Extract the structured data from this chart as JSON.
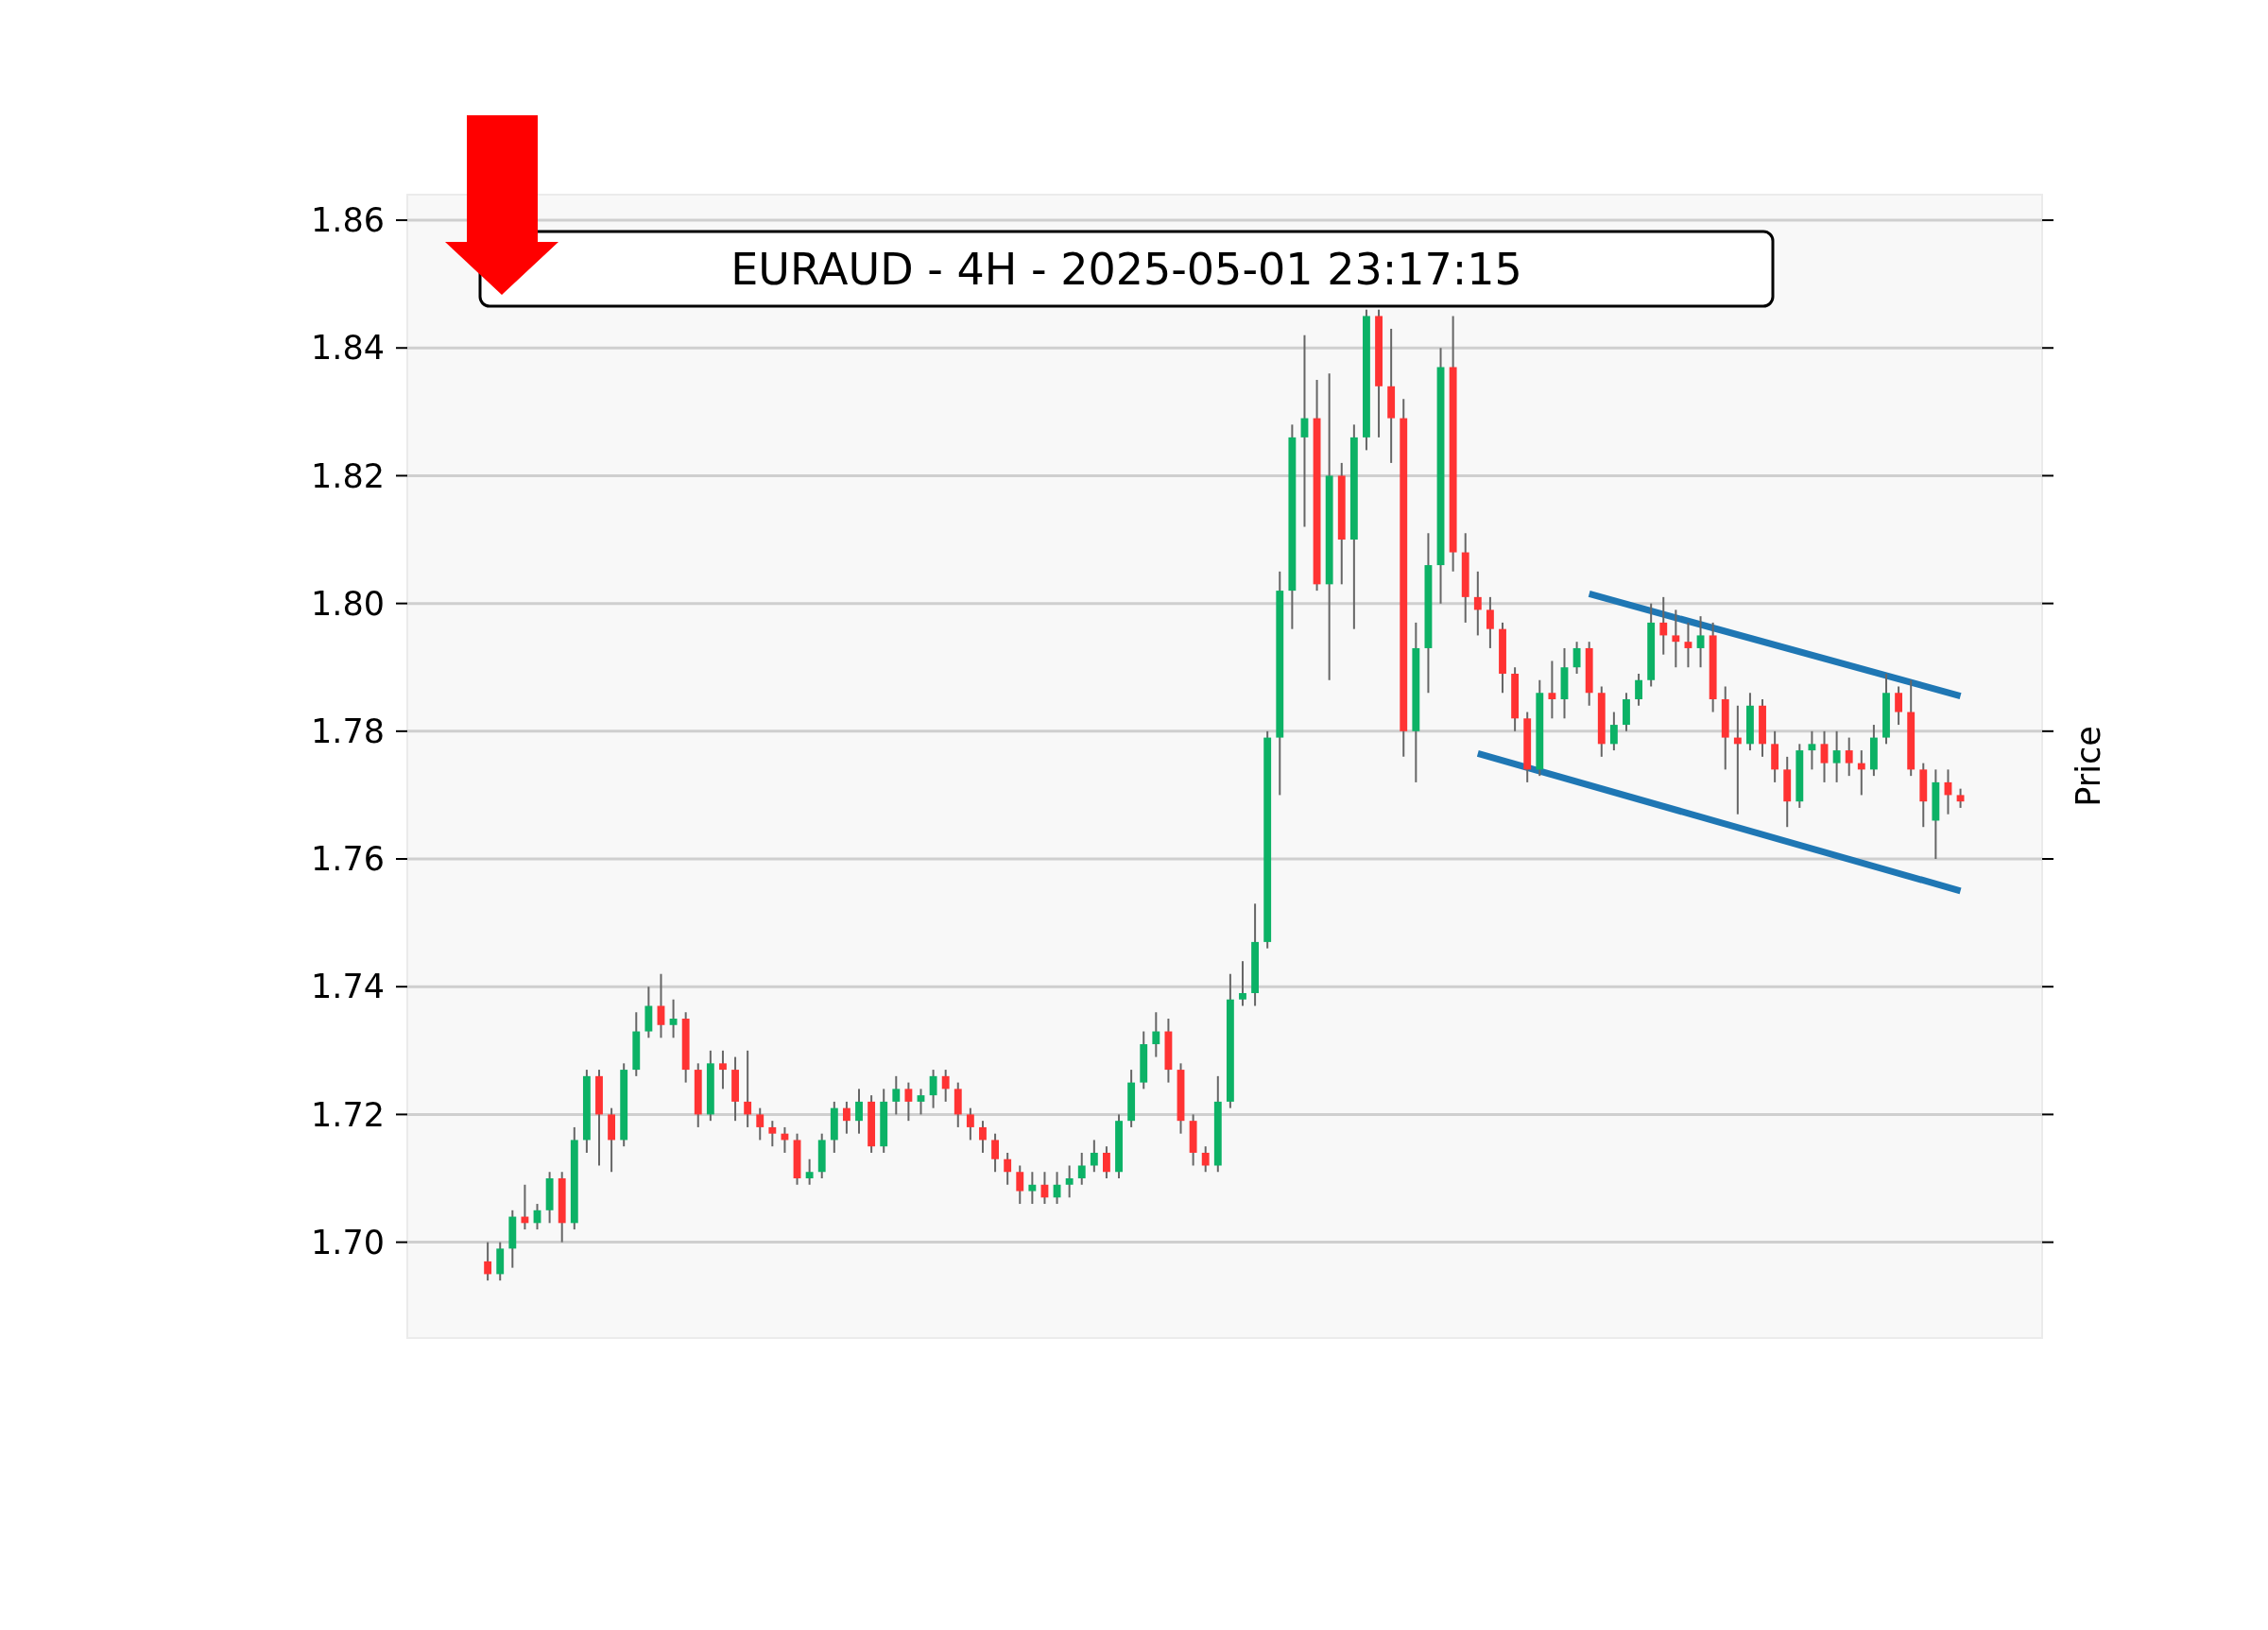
{
  "chart_data": {
    "type": "candlestick",
    "title": "EURAUD - 4H - 2025-05-01 23:17:15",
    "ylabel": "Price",
    "ylim": [
      1.685,
      1.864
    ],
    "yticks": [
      {
        "value": 1.7,
        "label": "1.70"
      },
      {
        "value": 1.72,
        "label": "1.72"
      },
      {
        "value": 1.74,
        "label": "1.74"
      },
      {
        "value": 1.76,
        "label": "1.76"
      },
      {
        "value": 1.78,
        "label": "1.78"
      },
      {
        "value": 1.8,
        "label": "1.80"
      },
      {
        "value": 1.82,
        "label": "1.82"
      },
      {
        "value": 1.84,
        "label": "1.84"
      },
      {
        "value": 1.86,
        "label": "1.86"
      }
    ],
    "grid": "y",
    "tick_labels": "y",
    "colors": [
      "#ff3333",
      "#0cb266",
      "#0cb266",
      "#ff3333",
      "#0cb266",
      "#0cb266",
      "#ff3333",
      "#0cb266",
      "#0cb266",
      "#ff3333",
      "#ff3333",
      "#0cb266",
      "#0cb266",
      "#0cb266",
      "#ff3333",
      "#0cb266",
      "#ff3333",
      "#ff3333",
      "#0cb266",
      "#ff3333",
      "#ff3333",
      "#ff3333",
      "#ff3333",
      "#ff3333",
      "#ff3333",
      "#ff3333",
      "#0cb266",
      "#0cb266",
      "#0cb266",
      "#ff3333",
      "#0cb266",
      "#ff3333",
      "#0cb266",
      "#0cb266",
      "#ff3333",
      "#0cb266",
      "#0cb266",
      "#ff3333",
      "#ff3333",
      "#ff3333",
      "#ff3333",
      "#ff3333",
      "#ff3333",
      "#ff3333",
      "#0cb266",
      "#ff3333",
      "#0cb266",
      "#0cb266",
      "#0cb266",
      "#0cb266",
      "#ff3333",
      "#0cb266",
      "#0cb266",
      "#0cb266",
      "#0cb266",
      "#ff3333",
      "#ff3333",
      "#ff3333",
      "#ff3333",
      "#0cb266",
      "#0cb266",
      "#0cb266",
      "#0cb266",
      "#0cb266",
      "#0cb266",
      "#0cb266",
      "#0cb266",
      "#ff3333",
      "#0cb266",
      "#ff3333",
      "#0cb266",
      "#0cb266",
      "#ff3333",
      "#ff3333",
      "#ff3333",
      "#0cb266",
      "#0cb266",
      "#0cb266",
      "#ff3333",
      "#ff3333",
      "#ff3333",
      "#ff3333",
      "#ff3333",
      "#ff3333",
      "#ff3333",
      "#0cb266",
      "#ff3333",
      "#0cb266",
      "#0cb266",
      "#ff3333",
      "#ff3333",
      "#0cb266",
      "#0cb266",
      "#0cb266",
      "#0cb266",
      "#ff3333",
      "#ff3333",
      "#ff3333",
      "#0cb266",
      "#ff3333",
      "#ff3333",
      "#ff3333",
      "#0cb266",
      "#ff3333",
      "#ff3333",
      "#ff3333",
      "#0cb266",
      "#0cb266",
      "#ff3333",
      "#0cb266",
      "#ff3333",
      "#ff3333",
      "#0cb266",
      "#0cb266",
      "#ff3333",
      "#ff3333",
      "#ff3333",
      "#0cb266",
      "#ff3333",
      "#ff3333"
    ],
    "categories": [
      null,
      null,
      null,
      null,
      null,
      null,
      null,
      null,
      null,
      null,
      null,
      null,
      null,
      null,
      null,
      null,
      null,
      null,
      null,
      null,
      null,
      null,
      null,
      null,
      null,
      null,
      null,
      null,
      null,
      null,
      null,
      null,
      null,
      null,
      null,
      null,
      null,
      null,
      null,
      null,
      null,
      null,
      null,
      null,
      null,
      null,
      null,
      null,
      null,
      null,
      null,
      null,
      null,
      null,
      null,
      null,
      null,
      null,
      null,
      null,
      null,
      null,
      null,
      null,
      null,
      null,
      null,
      null,
      null,
      null,
      null,
      null,
      null,
      null,
      null,
      null,
      null,
      null,
      null,
      null,
      null,
      null,
      null,
      null,
      null,
      null,
      null,
      null,
      null,
      null,
      null,
      null,
      null,
      null,
      null,
      null,
      null,
      null,
      null,
      null,
      null,
      null,
      null,
      null,
      null,
      null,
      null,
      null,
      null,
      null,
      null,
      null,
      null,
      null,
      null,
      null,
      null,
      null,
      null,
      null
    ],
    "ohlc": [
      [
        1.697,
        1.7,
        1.694,
        1.695
      ],
      [
        1.695,
        1.7,
        1.694,
        1.699
      ],
      [
        1.699,
        1.705,
        1.696,
        1.704
      ],
      [
        1.704,
        1.709,
        1.702,
        1.703
      ],
      [
        1.703,
        1.706,
        1.702,
        1.705
      ],
      [
        1.705,
        1.711,
        1.703,
        1.71
      ],
      [
        1.71,
        1.711,
        1.7,
        1.703
      ],
      [
        1.703,
        1.718,
        1.702,
        1.716
      ],
      [
        1.716,
        1.727,
        1.714,
        1.726
      ],
      [
        1.726,
        1.727,
        1.712,
        1.72
      ],
      [
        1.72,
        1.721,
        1.711,
        1.716
      ],
      [
        1.716,
        1.728,
        1.715,
        1.727
      ],
      [
        1.727,
        1.736,
        1.726,
        1.733
      ],
      [
        1.733,
        1.74,
        1.732,
        1.737
      ],
      [
        1.737,
        1.742,
        1.732,
        1.734
      ],
      [
        1.734,
        1.738,
        1.732,
        1.735
      ],
      [
        1.735,
        1.736,
        1.725,
        1.727
      ],
      [
        1.727,
        1.728,
        1.718,
        1.72
      ],
      [
        1.72,
        1.73,
        1.719,
        1.728
      ],
      [
        1.728,
        1.73,
        1.724,
        1.727
      ],
      [
        1.727,
        1.729,
        1.719,
        1.722
      ],
      [
        1.722,
        1.73,
        1.718,
        1.72
      ],
      [
        1.72,
        1.721,
        1.716,
        1.718
      ],
      [
        1.718,
        1.719,
        1.715,
        1.717
      ],
      [
        1.717,
        1.718,
        1.714,
        1.716
      ],
      [
        1.716,
        1.717,
        1.709,
        1.71
      ],
      [
        1.71,
        1.713,
        1.709,
        1.711
      ],
      [
        1.711,
        1.717,
        1.71,
        1.716
      ],
      [
        1.716,
        1.722,
        1.714,
        1.721
      ],
      [
        1.721,
        1.722,
        1.717,
        1.719
      ],
      [
        1.719,
        1.724,
        1.717,
        1.722
      ],
      [
        1.722,
        1.723,
        1.714,
        1.715
      ],
      [
        1.715,
        1.724,
        1.714,
        1.722
      ],
      [
        1.722,
        1.726,
        1.72,
        1.724
      ],
      [
        1.724,
        1.725,
        1.719,
        1.722
      ],
      [
        1.722,
        1.724,
        1.72,
        1.723
      ],
      [
        1.723,
        1.727,
        1.721,
        1.726
      ],
      [
        1.726,
        1.727,
        1.722,
        1.724
      ],
      [
        1.724,
        1.725,
        1.718,
        1.72
      ],
      [
        1.72,
        1.721,
        1.716,
        1.718
      ],
      [
        1.718,
        1.719,
        1.714,
        1.716
      ],
      [
        1.716,
        1.717,
        1.711,
        1.713
      ],
      [
        1.713,
        1.714,
        1.709,
        1.711
      ],
      [
        1.711,
        1.712,
        1.706,
        1.708
      ],
      [
        1.708,
        1.711,
        1.706,
        1.709
      ],
      [
        1.709,
        1.711,
        1.706,
        1.707
      ],
      [
        1.707,
        1.711,
        1.706,
        1.709
      ],
      [
        1.709,
        1.712,
        1.707,
        1.71
      ],
      [
        1.71,
        1.714,
        1.709,
        1.712
      ],
      [
        1.712,
        1.716,
        1.711,
        1.714
      ],
      [
        1.714,
        1.715,
        1.71,
        1.711
      ],
      [
        1.711,
        1.72,
        1.71,
        1.719
      ],
      [
        1.719,
        1.727,
        1.718,
        1.725
      ],
      [
        1.725,
        1.733,
        1.724,
        1.731
      ],
      [
        1.731,
        1.736,
        1.729,
        1.733
      ],
      [
        1.733,
        1.735,
        1.725,
        1.727
      ],
      [
        1.727,
        1.728,
        1.717,
        1.719
      ],
      [
        1.719,
        1.72,
        1.712,
        1.714
      ],
      [
        1.714,
        1.715,
        1.711,
        1.712
      ],
      [
        1.712,
        1.726,
        1.711,
        1.722
      ],
      [
        1.722,
        1.742,
        1.721,
        1.738
      ],
      [
        1.738,
        1.744,
        1.737,
        1.739
      ],
      [
        1.739,
        1.753,
        1.737,
        1.747
      ],
      [
        1.747,
        1.78,
        1.746,
        1.779
      ],
      [
        1.779,
        1.805,
        1.77,
        1.802
      ],
      [
        1.802,
        1.828,
        1.796,
        1.826
      ],
      [
        1.826,
        1.842,
        1.812,
        1.829
      ],
      [
        1.829,
        1.835,
        1.802,
        1.803
      ],
      [
        1.803,
        1.836,
        1.788,
        1.82
      ],
      [
        1.82,
        1.822,
        1.803,
        1.81
      ],
      [
        1.81,
        1.828,
        1.796,
        1.826
      ],
      [
        1.826,
        1.846,
        1.824,
        1.845
      ],
      [
        1.845,
        1.846,
        1.826,
        1.834
      ],
      [
        1.834,
        1.843,
        1.822,
        1.829
      ],
      [
        1.829,
        1.832,
        1.776,
        1.78
      ],
      [
        1.78,
        1.797,
        1.772,
        1.793
      ],
      [
        1.793,
        1.811,
        1.786,
        1.806
      ],
      [
        1.806,
        1.84,
        1.8,
        1.837
      ],
      [
        1.837,
        1.845,
        1.805,
        1.808
      ],
      [
        1.808,
        1.811,
        1.797,
        1.801
      ],
      [
        1.801,
        1.805,
        1.795,
        1.799
      ],
      [
        1.799,
        1.801,
        1.793,
        1.796
      ],
      [
        1.796,
        1.797,
        1.786,
        1.789
      ],
      [
        1.789,
        1.79,
        1.78,
        1.782
      ],
      [
        1.782,
        1.783,
        1.772,
        1.774
      ],
      [
        1.774,
        1.788,
        1.773,
        1.786
      ],
      [
        1.786,
        1.791,
        1.782,
        1.785
      ],
      [
        1.785,
        1.793,
        1.782,
        1.79
      ],
      [
        1.79,
        1.794,
        1.789,
        1.793
      ],
      [
        1.793,
        1.794,
        1.784,
        1.786
      ],
      [
        1.786,
        1.787,
        1.776,
        1.778
      ],
      [
        1.778,
        1.783,
        1.777,
        1.781
      ],
      [
        1.781,
        1.786,
        1.78,
        1.785
      ],
      [
        1.785,
        1.789,
        1.784,
        1.788
      ],
      [
        1.788,
        1.8,
        1.787,
        1.797
      ],
      [
        1.797,
        1.801,
        1.792,
        1.795
      ],
      [
        1.795,
        1.799,
        1.79,
        1.794
      ],
      [
        1.794,
        1.797,
        1.79,
        1.793
      ],
      [
        1.793,
        1.798,
        1.79,
        1.795
      ],
      [
        1.795,
        1.797,
        1.783,
        1.785
      ],
      [
        1.785,
        1.787,
        1.774,
        1.779
      ],
      [
        1.779,
        1.784,
        1.767,
        1.778
      ],
      [
        1.778,
        1.786,
        1.777,
        1.784
      ],
      [
        1.784,
        1.785,
        1.776,
        1.778
      ],
      [
        1.778,
        1.78,
        1.772,
        1.774
      ],
      [
        1.774,
        1.776,
        1.765,
        1.769
      ],
      [
        1.769,
        1.778,
        1.768,
        1.777
      ],
      [
        1.777,
        1.78,
        1.774,
        1.778
      ],
      [
        1.778,
        1.78,
        1.772,
        1.775
      ],
      [
        1.775,
        1.78,
        1.772,
        1.777
      ],
      [
        1.777,
        1.779,
        1.773,
        1.775
      ],
      [
        1.775,
        1.777,
        1.77,
        1.774
      ],
      [
        1.774,
        1.781,
        1.773,
        1.779
      ],
      [
        1.779,
        1.789,
        1.778,
        1.786
      ],
      [
        1.786,
        1.787,
        1.781,
        1.783
      ],
      [
        1.783,
        1.788,
        1.773,
        1.774
      ],
      [
        1.774,
        1.775,
        1.765,
        1.769
      ],
      [
        1.766,
        1.774,
        1.76,
        1.772
      ],
      [
        1.772,
        1.774,
        1.767,
        1.77
      ],
      [
        1.77,
        1.771,
        1.768,
        1.769
      ]
    ],
    "series": [
      {
        "type": "line",
        "color": "#1f77b4",
        "values": [
          null,
          null,
          null,
          null,
          null,
          null,
          null,
          null,
          null,
          null,
          null,
          null,
          null,
          null,
          null,
          null,
          null,
          null,
          null,
          null,
          null,
          null,
          null,
          null,
          null,
          null,
          null,
          null,
          null,
          null,
          null,
          null,
          null,
          null,
          null,
          null,
          null,
          null,
          null,
          null,
          null,
          null,
          null,
          null,
          null,
          null,
          null,
          null,
          null,
          null,
          null,
          null,
          null,
          null,
          null,
          null,
          null,
          null,
          null,
          null,
          null,
          null,
          null,
          null,
          null,
          null,
          null,
          null,
          null,
          null,
          null,
          null,
          null,
          null,
          null,
          null,
          null,
          null,
          null,
          null,
          null,
          null,
          null,
          null,
          null,
          null,
          null,
          null,
          null,
          1.8015,
          null,
          null,
          null,
          null,
          null,
          null,
          null,
          null,
          null,
          null,
          null,
          null,
          null,
          null,
          null,
          null,
          null,
          null,
          null,
          null,
          null,
          null,
          null,
          null,
          null,
          null,
          null,
          null,
          null,
          1.7855
        ]
      },
      {
        "type": "line",
        "color": "#1f77b4",
        "values": [
          null,
          null,
          null,
          null,
          null,
          null,
          null,
          null,
          null,
          null,
          null,
          null,
          null,
          null,
          null,
          null,
          null,
          null,
          null,
          null,
          null,
          null,
          null,
          null,
          null,
          null,
          null,
          null,
          null,
          null,
          null,
          null,
          null,
          null,
          null,
          null,
          null,
          null,
          null,
          null,
          null,
          null,
          null,
          null,
          null,
          null,
          null,
          null,
          null,
          null,
          null,
          null,
          null,
          null,
          null,
          null,
          null,
          null,
          null,
          null,
          null,
          null,
          null,
          null,
          null,
          null,
          null,
          null,
          null,
          null,
          null,
          null,
          null,
          null,
          null,
          null,
          null,
          null,
          null,
          null,
          1.7765,
          null,
          null,
          null,
          null,
          null,
          null,
          null,
          null,
          null,
          null,
          null,
          null,
          null,
          null,
          null,
          null,
          null,
          null,
          null,
          null,
          null,
          null,
          null,
          null,
          null,
          null,
          null,
          null,
          null,
          null,
          null,
          null,
          null,
          null,
          null,
          null,
          null,
          null,
          1.755
        ]
      }
    ]
  }
}
